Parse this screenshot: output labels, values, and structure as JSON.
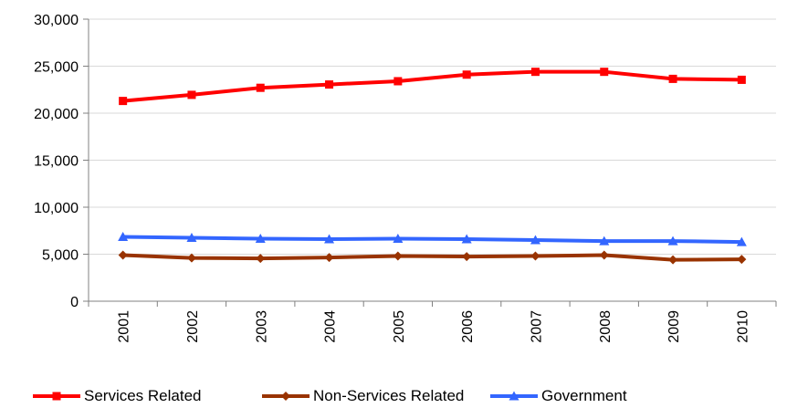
{
  "chart_data": {
    "type": "line",
    "title": "",
    "xlabel": "",
    "ylabel": "",
    "categories": [
      "2001",
      "2002",
      "2003",
      "2004",
      "2005",
      "2006",
      "2007",
      "2008",
      "2009",
      "2010"
    ],
    "ylim": [
      0,
      30000
    ],
    "y_ticks": [
      "0",
      "5,000",
      "10,000",
      "15,000",
      "20,000",
      "25,000",
      "30,000"
    ],
    "grid": "horizontal",
    "legend_position": "bottom",
    "series": [
      {
        "name": "Services Related",
        "color": "#ff0000",
        "marker": "square",
        "values": [
          21300,
          21950,
          22700,
          23050,
          23400,
          24100,
          24400,
          24400,
          23650,
          23550
        ]
      },
      {
        "name": "Non-Services Related",
        "color": "#993300",
        "marker": "diamond",
        "values": [
          4900,
          4600,
          4550,
          4650,
          4800,
          4750,
          4800,
          4900,
          4400,
          4450
        ]
      },
      {
        "name": "Government",
        "color": "#3366ff",
        "marker": "triangle",
        "values": [
          6850,
          6750,
          6650,
          6600,
          6650,
          6600,
          6500,
          6400,
          6400,
          6300
        ]
      }
    ]
  }
}
